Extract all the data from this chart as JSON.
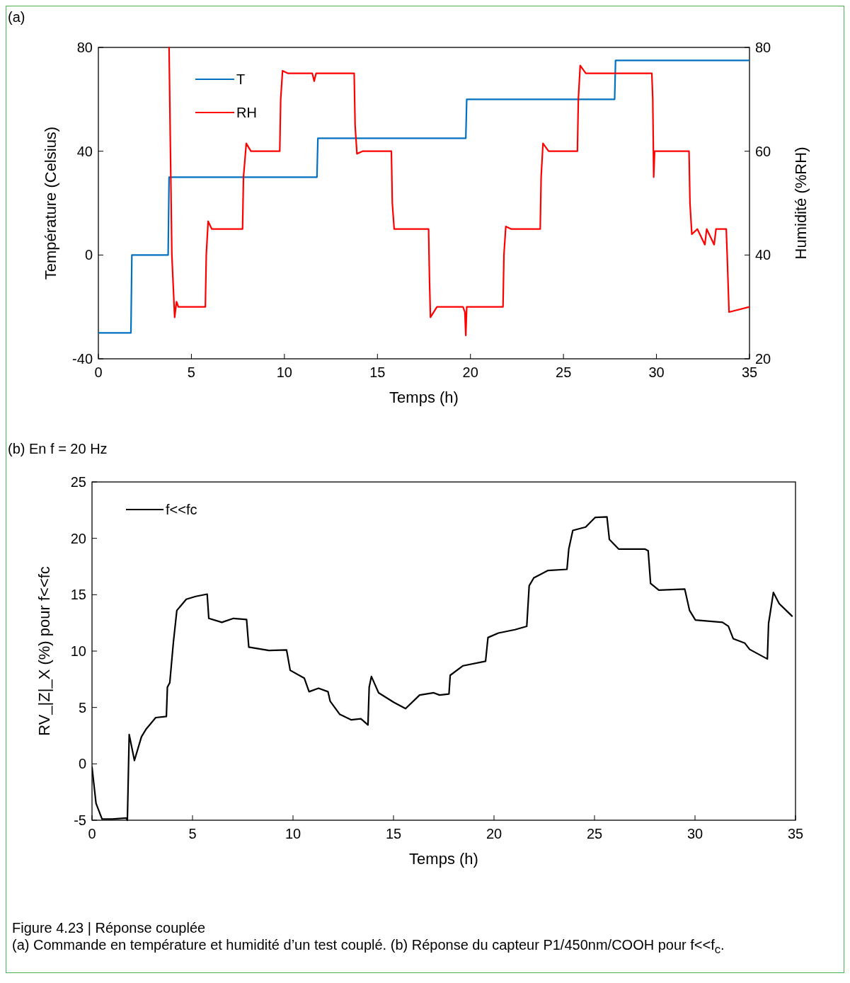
{
  "chart_data": [
    {
      "type": "line",
      "title": "(a)",
      "xlabel": "Temps (h)",
      "ylabel": "Température (Celsius)",
      "y2label": "Humidité (%RH)",
      "xlim": [
        0,
        35
      ],
      "xticks": [
        0,
        5,
        10,
        15,
        20,
        25,
        30,
        35
      ],
      "ylim": [
        -40,
        80
      ],
      "yticks": [
        -40,
        0,
        40,
        80
      ],
      "y2lim": [
        20,
        80
      ],
      "y2ticks": [
        20,
        40,
        60,
        80
      ],
      "legend": "top left",
      "grid": false,
      "series": [
        {
          "name": "T",
          "color": "#0070c0",
          "x": [
            0,
            1.75,
            1.8,
            3.75,
            3.8,
            11.75,
            11.8,
            19.75,
            19.8,
            27.75,
            27.8,
            35
          ],
          "values": [
            -30,
            -30,
            0,
            0,
            30,
            30,
            45,
            45,
            60,
            60,
            75,
            75
          ]
        },
        {
          "name": "RH",
          "color": "#ff0000",
          "axis": "y2",
          "x": [
            3.8,
            3.95,
            4.1,
            4.2,
            4.3,
            5.75,
            5.8,
            5.9,
            6.1,
            7.75,
            7.8,
            7.95,
            8.2,
            9.75,
            9.8,
            9.9,
            10.2,
            11.5,
            11.6,
            11.7,
            13.75,
            13.8,
            13.9,
            14.2,
            15.75,
            15.8,
            15.9,
            16.2,
            17.75,
            17.8,
            17.85,
            18.2,
            19.6,
            19.7,
            19.75,
            19.8,
            21.75,
            21.8,
            21.9,
            22.2,
            23.75,
            23.8,
            23.9,
            24.2,
            25.75,
            25.8,
            25.9,
            26.2,
            29.75,
            29.8,
            29.85,
            29.9,
            30.2,
            31.75,
            31.8,
            31.9,
            32.2,
            32.6,
            32.7,
            33.1,
            33.2,
            33.75,
            33.8,
            33.9,
            35
          ],
          "values": [
            80,
            40,
            28,
            31,
            30,
            30,
            40,
            46.5,
            45,
            45,
            55,
            61.5,
            60,
            60,
            70,
            75.5,
            75,
            75,
            73.5,
            75,
            75,
            65,
            59.5,
            60,
            60,
            50,
            45,
            45,
            45,
            35,
            28,
            30,
            30,
            29,
            24.5,
            30,
            30,
            40,
            45.5,
            45,
            45,
            55,
            61.5,
            60,
            60,
            70,
            76.5,
            75,
            75,
            70,
            55,
            60,
            60,
            60,
            50,
            44,
            45,
            42,
            45,
            42,
            45,
            45,
            40,
            29,
            30
          ]
        }
      ]
    },
    {
      "type": "line",
      "title": "(b) En f = 20 Hz",
      "xlabel": "Temps (h)",
      "ylabel": "RV_|Z|_X (%) pour f<<fc",
      "xlim": [
        0,
        35
      ],
      "xticks": [
        0,
        5,
        10,
        15,
        20,
        25,
        30,
        35
      ],
      "ylim": [
        -5,
        25
      ],
      "yticks": [
        -5,
        0,
        5,
        10,
        15,
        20,
        25
      ],
      "legend": "top left",
      "grid": false,
      "annotations": [
        "Figure 4.23 | Réponse couplée",
        "(a) Commande en température et humidité d’un test couplé. (b) Réponse du capteur P1/450nm/COOH pour f<<f$_{c}$."
      ],
      "series": [
        {
          "name": "f<<fc",
          "color": "#000000",
          "x": [
            0,
            0.2,
            0.5,
            1.0,
            1.7,
            1.76,
            1.85,
            2.11,
            2.46,
            2.7,
            3.17,
            3.7,
            3.75,
            3.87,
            4.05,
            4.22,
            4.69,
            5.16,
            5.73,
            5.81,
            6.46,
            7.04,
            7.69,
            7.8,
            8.8,
            9.68,
            9.86,
            10.56,
            10.8,
            11.27,
            11.74,
            11.85,
            12.32,
            12.9,
            13.38,
            13.73,
            13.79,
            13.9,
            14.26,
            15.02,
            15.6,
            16.3,
            17.0,
            17.29,
            17.76,
            17.82,
            18.46,
            19.58,
            19.7,
            20.22,
            21.04,
            21.63,
            21.75,
            21.98,
            22.69,
            23.63,
            23.72,
            23.92,
            24.56,
            25.03,
            25.62,
            25.74,
            26.2,
            27.5,
            27.67,
            27.79,
            28.2,
            29.49,
            29.73,
            30.02,
            31.37,
            31.66,
            31.9,
            32.48,
            32.72,
            33.6,
            33.66,
            33.9,
            34.19,
            34.54,
            34.83
          ],
          "values": [
            -0.3,
            -3.5,
            -4.9,
            -4.9,
            -4.8,
            -5,
            2.6,
            0.3,
            2.4,
            3.1,
            4.1,
            4.2,
            6.8,
            7.2,
            10.8,
            13.6,
            14.6,
            14.85,
            15.05,
            12.9,
            12.55,
            12.9,
            12.8,
            10.35,
            10.05,
            10.1,
            8.3,
            7.6,
            6.4,
            6.7,
            6.4,
            5.55,
            4.4,
            3.9,
            4.0,
            3.45,
            6.8,
            7.75,
            6.3,
            5.45,
            4.9,
            6.1,
            6.3,
            6.1,
            6.2,
            7.85,
            8.7,
            9.1,
            11.2,
            11.6,
            11.9,
            12.2,
            15.8,
            16.5,
            17.15,
            17.25,
            19.05,
            20.7,
            21.0,
            21.85,
            21.9,
            19.9,
            19.05,
            19.05,
            18.9,
            16.0,
            15.4,
            15.5,
            13.6,
            12.75,
            12.55,
            12.2,
            11.1,
            10.7,
            10.15,
            9.3,
            12.45,
            15.2,
            14.2,
            13.6,
            13.1
          ]
        }
      ]
    }
  ]
}
